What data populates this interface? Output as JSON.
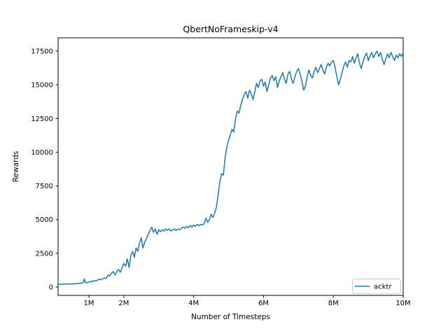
{
  "figure": {
    "background": "#ffffff"
  },
  "chart_data": {
    "type": "line",
    "title": "QbertNoFrameskip-v4",
    "xlabel": "Number of Timesteps",
    "ylabel": "Rewards",
    "x_unit": "millions (M) of timesteps",
    "xlim": [
      0.118,
      10.0
    ],
    "ylim": [
      -623,
      18486
    ],
    "grid": false,
    "x_ticks": [
      {
        "value": 1,
        "label": "1M"
      },
      {
        "value": 2,
        "label": "2M"
      },
      {
        "value": 4,
        "label": "4M"
      },
      {
        "value": 6,
        "label": "6M"
      },
      {
        "value": 8,
        "label": "8M"
      },
      {
        "value": 10,
        "label": "10M"
      }
    ],
    "y_ticks": [
      {
        "value": 0,
        "label": "0"
      },
      {
        "value": 2500,
        "label": "2500"
      },
      {
        "value": 5000,
        "label": "5000"
      },
      {
        "value": 7500,
        "label": "7500"
      },
      {
        "value": 10000,
        "label": "10000"
      },
      {
        "value": 12500,
        "label": "12500"
      },
      {
        "value": 15000,
        "label": "15000"
      },
      {
        "value": 17500,
        "label": "17500"
      }
    ],
    "legend": {
      "position": "lower right",
      "entries": [
        {
          "label": "acktr",
          "color": "#1f77b4"
        }
      ]
    },
    "series": [
      {
        "name": "acktr",
        "color": "#1f77b4",
        "line_width": 1.5,
        "points": [
          [
            0.12,
            210
          ],
          [
            0.2,
            205
          ],
          [
            0.28,
            225
          ],
          [
            0.36,
            215
          ],
          [
            0.44,
            235
          ],
          [
            0.52,
            225
          ],
          [
            0.6,
            250
          ],
          [
            0.65,
            240
          ],
          [
            0.7,
            265
          ],
          [
            0.75,
            290
          ],
          [
            0.8,
            280
          ],
          [
            0.84,
            320
          ],
          [
            0.87,
            600
          ],
          [
            0.9,
            340
          ],
          [
            0.95,
            310
          ],
          [
            1.0,
            370
          ],
          [
            1.05,
            420
          ],
          [
            1.1,
            390
          ],
          [
            1.15,
            480
          ],
          [
            1.2,
            440
          ],
          [
            1.25,
            520
          ],
          [
            1.3,
            580
          ],
          [
            1.35,
            540
          ],
          [
            1.4,
            620
          ],
          [
            1.45,
            680
          ],
          [
            1.5,
            640
          ],
          [
            1.55,
            880
          ],
          [
            1.6,
            820
          ],
          [
            1.65,
            1040
          ],
          [
            1.7,
            1140
          ],
          [
            1.75,
            900
          ],
          [
            1.8,
            1150
          ],
          [
            1.85,
            1300
          ],
          [
            1.9,
            1100
          ],
          [
            1.95,
            1400
          ],
          [
            2.0,
            1750
          ],
          [
            2.05,
            1550
          ],
          [
            2.1,
            2100
          ],
          [
            2.15,
            1450
          ],
          [
            2.2,
            2300
          ],
          [
            2.25,
            2650
          ],
          [
            2.3,
            2200
          ],
          [
            2.35,
            2900
          ],
          [
            2.4,
            2650
          ],
          [
            2.45,
            3250
          ],
          [
            2.5,
            3650
          ],
          [
            2.55,
            2900
          ],
          [
            2.6,
            3350
          ],
          [
            2.65,
            3600
          ],
          [
            2.7,
            3900
          ],
          [
            2.75,
            4200
          ],
          [
            2.8,
            4450
          ],
          [
            2.85,
            4050
          ],
          [
            2.9,
            4300
          ],
          [
            2.95,
            3900
          ],
          [
            3.0,
            4250
          ],
          [
            3.05,
            4100
          ],
          [
            3.1,
            4250
          ],
          [
            3.15,
            4150
          ],
          [
            3.2,
            4300
          ],
          [
            3.25,
            4200
          ],
          [
            3.3,
            4300
          ],
          [
            3.35,
            4150
          ],
          [
            3.4,
            4250
          ],
          [
            3.45,
            4300
          ],
          [
            3.5,
            4200
          ],
          [
            3.55,
            4300
          ],
          [
            3.6,
            4250
          ],
          [
            3.65,
            4350
          ],
          [
            3.7,
            4450
          ],
          [
            3.75,
            4350
          ],
          [
            3.8,
            4500
          ],
          [
            3.85,
            4400
          ],
          [
            3.9,
            4550
          ],
          [
            3.95,
            4450
          ],
          [
            4.0,
            4600
          ],
          [
            4.05,
            4500
          ],
          [
            4.1,
            4650
          ],
          [
            4.15,
            4550
          ],
          [
            4.2,
            4650
          ],
          [
            4.25,
            4600
          ],
          [
            4.3,
            4700
          ],
          [
            4.35,
            5100
          ],
          [
            4.4,
            4800
          ],
          [
            4.45,
            5000
          ],
          [
            4.5,
            5400
          ],
          [
            4.55,
            5150
          ],
          [
            4.6,
            5450
          ],
          [
            4.65,
            5900
          ],
          [
            4.7,
            6800
          ],
          [
            4.75,
            7800
          ],
          [
            4.8,
            8400
          ],
          [
            4.85,
            8300
          ],
          [
            4.9,
            9600
          ],
          [
            4.95,
            10400
          ],
          [
            5.0,
            10900
          ],
          [
            5.05,
            11300
          ],
          [
            5.1,
            11700
          ],
          [
            5.15,
            11500
          ],
          [
            5.2,
            12500
          ],
          [
            5.25,
            13050
          ],
          [
            5.3,
            12900
          ],
          [
            5.35,
            13500
          ],
          [
            5.4,
            13900
          ],
          [
            5.45,
            14300
          ],
          [
            5.5,
            14500
          ],
          [
            5.55,
            14000
          ],
          [
            5.6,
            14600
          ],
          [
            5.65,
            14300
          ],
          [
            5.7,
            13900
          ],
          [
            5.75,
            14500
          ],
          [
            5.8,
            15100
          ],
          [
            5.85,
            14800
          ],
          [
            5.9,
            15300
          ],
          [
            5.95,
            15400
          ],
          [
            6.0,
            14900
          ],
          [
            6.05,
            15200
          ],
          [
            6.1,
            14500
          ],
          [
            6.15,
            15000
          ],
          [
            6.2,
            15500
          ],
          [
            6.25,
            15700
          ],
          [
            6.3,
            15300
          ],
          [
            6.35,
            15600
          ],
          [
            6.4,
            14800
          ],
          [
            6.45,
            15300
          ],
          [
            6.5,
            15600
          ],
          [
            6.55,
            15900
          ],
          [
            6.6,
            15400
          ],
          [
            6.65,
            15100
          ],
          [
            6.7,
            15800
          ],
          [
            6.75,
            16000
          ],
          [
            6.8,
            15400
          ],
          [
            6.85,
            15100
          ],
          [
            6.9,
            15600
          ],
          [
            6.95,
            16000
          ],
          [
            7.0,
            16200
          ],
          [
            7.05,
            15800
          ],
          [
            7.1,
            15300
          ],
          [
            7.15,
            14600
          ],
          [
            7.2,
            14900
          ],
          [
            7.25,
            15600
          ],
          [
            7.3,
            16100
          ],
          [
            7.35,
            15700
          ],
          [
            7.4,
            15500
          ],
          [
            7.45,
            16000
          ],
          [
            7.5,
            16300
          ],
          [
            7.55,
            15900
          ],
          [
            7.6,
            16200
          ],
          [
            7.65,
            16500
          ],
          [
            7.7,
            16100
          ],
          [
            7.75,
            15800
          ],
          [
            7.8,
            16300
          ],
          [
            7.85,
            16600
          ],
          [
            7.9,
            16400
          ],
          [
            7.95,
            16700
          ],
          [
            8.0,
            16800
          ],
          [
            8.05,
            16300
          ],
          [
            8.1,
            15600
          ],
          [
            8.15,
            15000
          ],
          [
            8.2,
            15400
          ],
          [
            8.25,
            15900
          ],
          [
            8.3,
            16400
          ],
          [
            8.35,
            16700
          ],
          [
            8.4,
            16300
          ],
          [
            8.45,
            16800
          ],
          [
            8.5,
            16700
          ],
          [
            8.55,
            17100
          ],
          [
            8.6,
            16600
          ],
          [
            8.65,
            17000
          ],
          [
            8.7,
            17300
          ],
          [
            8.75,
            16600
          ],
          [
            8.8,
            16200
          ],
          [
            8.85,
            16700
          ],
          [
            8.9,
            17100
          ],
          [
            8.95,
            17350
          ],
          [
            9.0,
            16800
          ],
          [
            9.05,
            17150
          ],
          [
            9.1,
            17400
          ],
          [
            9.15,
            17000
          ],
          [
            9.2,
            17300
          ],
          [
            9.25,
            17500
          ],
          [
            9.3,
            17100
          ],
          [
            9.35,
            17400
          ],
          [
            9.4,
            16900
          ],
          [
            9.45,
            16500
          ],
          [
            9.5,
            16900
          ],
          [
            9.55,
            17300
          ],
          [
            9.6,
            17000
          ],
          [
            9.65,
            17400
          ],
          [
            9.7,
            17100
          ],
          [
            9.75,
            16800
          ],
          [
            9.8,
            17200
          ],
          [
            9.85,
            17000
          ],
          [
            9.9,
            17300
          ],
          [
            9.95,
            17100
          ],
          [
            10.0,
            17400
          ]
        ]
      }
    ]
  },
  "colors": {
    "background": "#ffffff",
    "text": "#000000",
    "spine": "#000000",
    "legend_border": "#cccccc",
    "legend_background": "#ffffff",
    "accent_line": "#1f77b4"
  }
}
